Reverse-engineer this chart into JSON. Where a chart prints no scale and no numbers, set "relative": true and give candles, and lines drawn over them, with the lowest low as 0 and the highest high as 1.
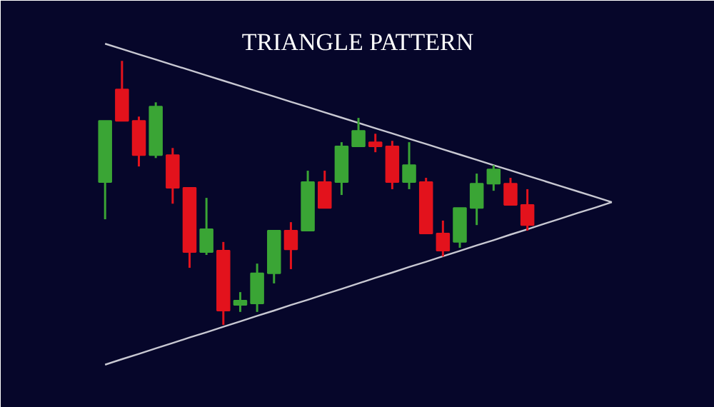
{
  "chart_data": {
    "type": "candlestick",
    "title": "TRIANGLE PATTERN",
    "relative": true,
    "categories": [
      null,
      null,
      null,
      null,
      null,
      null,
      null,
      null,
      null,
      null,
      null,
      null,
      null,
      null,
      null,
      null,
      null,
      null,
      null,
      null,
      null,
      null,
      null,
      null,
      null,
      null,
      null,
      null,
      null,
      null,
      null
    ],
    "ohlc": [
      [
        0.541,
        0.773,
        0.4,
        0.773
      ],
      [
        0.892,
        1.0,
        0.773,
        0.773
      ],
      [
        0.773,
        0.789,
        0.6,
        0.643
      ],
      [
        0.643,
        0.843,
        0.632,
        0.827
      ],
      [
        0.643,
        0.67,
        0.459,
        0.519
      ],
      [
        0.519,
        0.519,
        0.216,
        0.276
      ],
      [
        0.276,
        0.481,
        0.265,
        0.362
      ],
      [
        0.281,
        0.314,
        0.0,
        0.054
      ],
      [
        0.081,
        0.124,
        0.049,
        0.086
      ],
      [
        0.081,
        0.232,
        0.049,
        0.195
      ],
      [
        0.195,
        0.357,
        0.157,
        0.357
      ],
      [
        0.357,
        0.389,
        0.211,
        0.286
      ],
      [
        0.357,
        0.584,
        0.357,
        0.541
      ],
      [
        0.541,
        0.584,
        0.443,
        0.443
      ],
      [
        0.541,
        0.692,
        0.492,
        0.676
      ],
      [
        0.676,
        0.784,
        0.676,
        0.735
      ],
      [
        0.692,
        0.724,
        0.654,
        0.676
      ],
      [
        0.676,
        0.697,
        0.514,
        0.541
      ],
      [
        0.541,
        0.692,
        0.514,
        0.605
      ],
      [
        0.541,
        0.557,
        0.346,
        0.346
      ],
      [
        0.346,
        0.395,
        0.259,
        0.281
      ],
      [
        0.314,
        0.443,
        0.292,
        0.443
      ],
      [
        0.443,
        0.573,
        0.378,
        0.535
      ],
      [
        0.535,
        0.605,
        0.508,
        0.589
      ],
      [
        0.535,
        0.557,
        0.454,
        0.454
      ],
      [
        0.454,
        0.514,
        0.357,
        0.378
      ],
      null,
      null,
      null,
      null,
      null
    ],
    "colors": [
      "#3aa535",
      "#e3121c",
      "#e3121c",
      "#3aa535",
      "#e3121c",
      "#e3121c",
      "#3aa535",
      "#e3121c",
      "#3aa535",
      "#3aa535",
      "#3aa535",
      "#e3121c",
      "#3aa535",
      "#e3121c",
      "#3aa535",
      "#3aa535",
      "#e3121c",
      "#e3121c",
      "#3aa535",
      "#e3121c",
      "#e3121c",
      "#3aa535",
      "#3aa535",
      "#3aa535",
      "#e3121c",
      "#e3121c",
      null,
      null,
      null,
      null,
      null
    ],
    "series": [
      {
        "type": "line",
        "color": "#c8c8d2",
        "values": [
          1.065,
          1.045,
          1.025,
          1.005,
          0.985,
          0.965,
          0.945,
          0.925,
          0.905,
          0.885,
          0.865,
          0.845,
          0.825,
          0.805,
          0.785,
          0.765,
          0.745,
          0.725,
          0.705,
          0.685,
          0.665,
          0.645,
          0.625,
          0.605,
          0.585,
          0.565,
          0.545,
          0.525,
          0.505,
          0.485,
          0.465
        ]
      },
      {
        "type": "line",
        "color": "#c8c8d2",
        "values": [
          -0.151,
          -0.13,
          -0.11,
          -0.089,
          -0.069,
          -0.048,
          -0.028,
          -0.007,
          0.013,
          0.034,
          0.054,
          0.075,
          0.095,
          0.116,
          0.136,
          0.157,
          0.178,
          0.198,
          0.219,
          0.239,
          0.26,
          0.28,
          0.301,
          0.321,
          0.342,
          0.362,
          0.383,
          0.403,
          0.424,
          0.444,
          0.465
        ]
      }
    ]
  }
}
